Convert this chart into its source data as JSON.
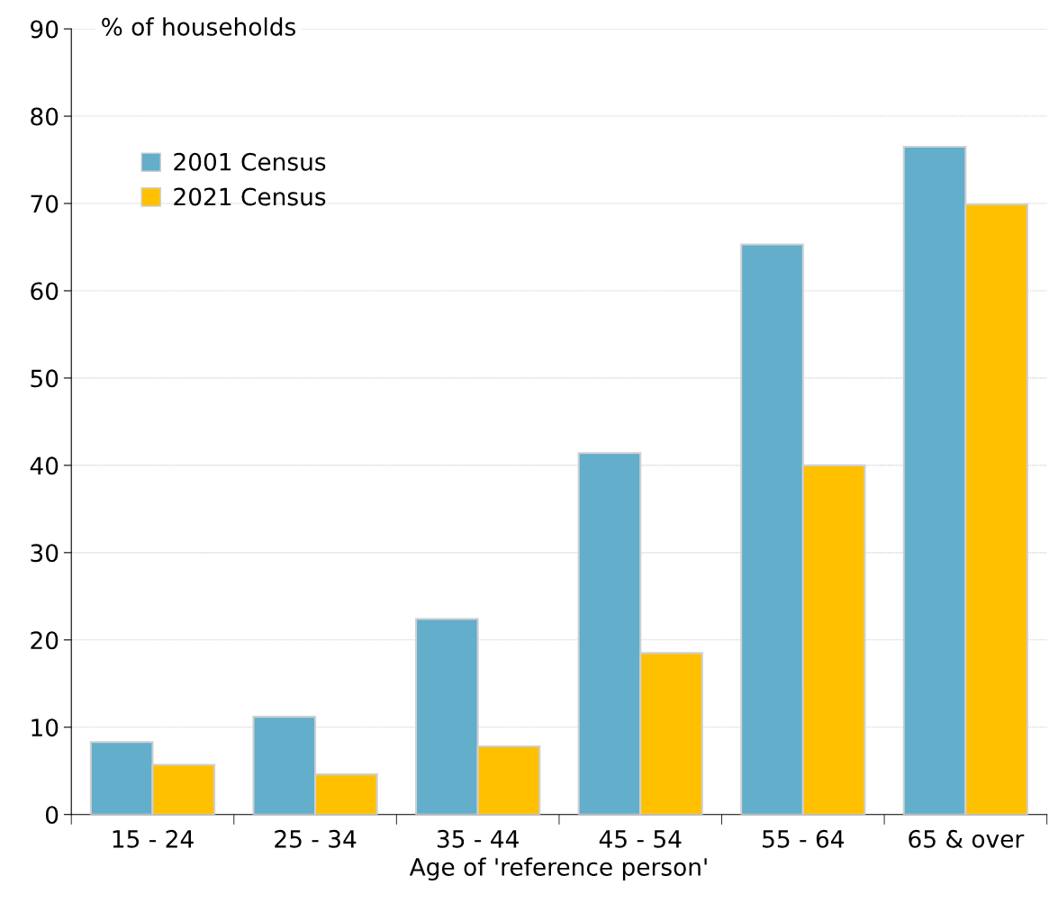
{
  "chart_data": {
    "type": "bar",
    "ylabel": "% of households",
    "xlabel": "Age of 'reference person'",
    "categories": [
      "15 - 24",
      "25 - 34",
      "35 - 44",
      "45 - 54",
      "55 - 64",
      "65 & over"
    ],
    "series": [
      {
        "name": "2001 Census",
        "color": "#62aecb",
        "values": [
          8.3,
          11.2,
          22.4,
          41.4,
          65.3,
          76.5
        ]
      },
      {
        "name": "2021 Census",
        "color": "#ffc000",
        "values": [
          5.7,
          4.6,
          7.8,
          18.5,
          40.0,
          69.9
        ]
      }
    ],
    "ylim": [
      0,
      90
    ],
    "yticks": [
      0,
      10,
      20,
      30,
      40,
      50,
      60,
      70,
      80,
      90
    ],
    "grid": "y",
    "legend": "top left"
  }
}
